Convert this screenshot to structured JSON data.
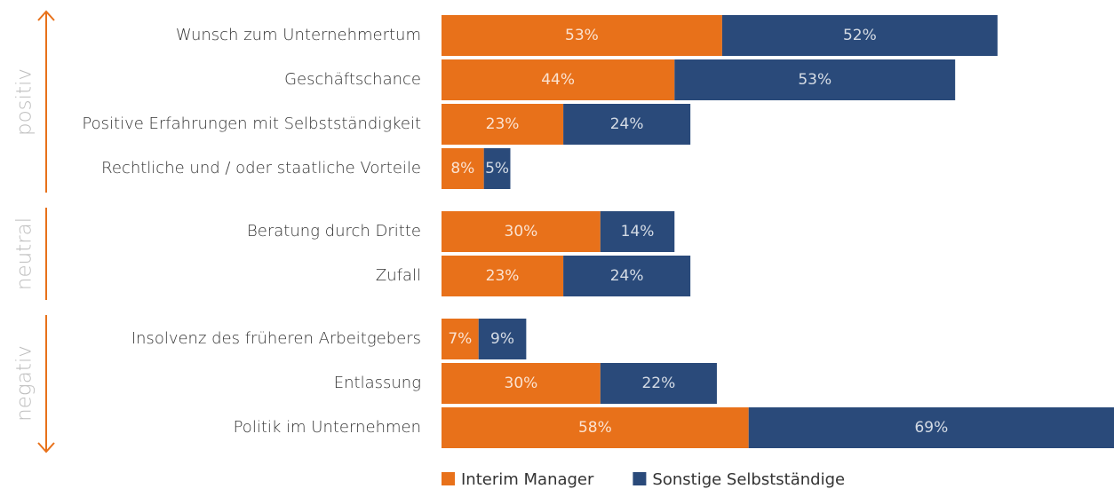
{
  "chart_data": {
    "type": "stacked-bar-horizontal",
    "groups": [
      {
        "name": "positiv",
        "categories": [
          "Wunsch zum Unternehmertum",
          "Geschäftschance",
          "Positive Erfahrungen mit Selbstständigkeit",
          "Rechtliche und / oder staatliche Vorteile"
        ]
      },
      {
        "name": "neutral",
        "categories": [
          "Beratung durch Dritte",
          "Zufall"
        ]
      },
      {
        "name": "negativ",
        "categories": [
          "Insolvenz des früheren Arbeitgebers",
          "Entlassung",
          "Politik im Unternehmen"
        ]
      }
    ],
    "series": [
      {
        "name": "Interim Manager",
        "color": "#e8711a",
        "values": [
          53,
          44,
          23,
          8,
          30,
          23,
          7,
          30,
          58
        ],
        "value_labels": [
          "53%",
          "44%",
          "23%",
          "8%",
          "30%",
          "23%",
          "7%",
          "30%",
          "58%"
        ]
      },
      {
        "name": "Sonstige Selbstständige",
        "color": "#2a4a7a",
        "values": [
          52,
          53,
          24,
          5,
          14,
          24,
          9,
          22,
          69
        ],
        "value_labels": [
          "52%",
          "53%",
          "24%",
          "5%",
          "14%",
          "24%",
          "9%",
          "22%",
          "69%"
        ]
      }
    ],
    "accent": "#e8711a"
  }
}
